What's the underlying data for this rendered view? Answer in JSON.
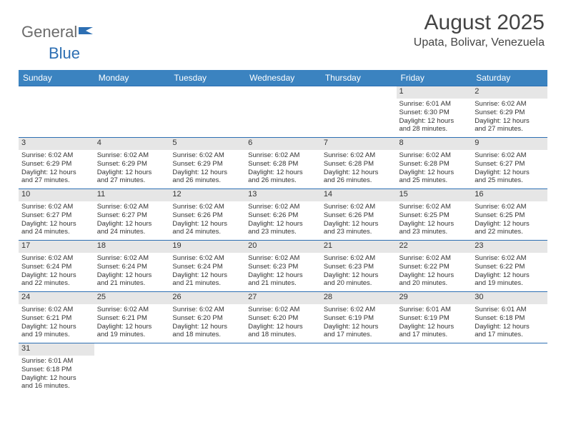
{
  "brand": {
    "general": "General",
    "blue": "Blue"
  },
  "title": "August 2025",
  "location": "Upata, Bolivar, Venezuela",
  "colors": {
    "header_bg": "#3b83c0",
    "header_text": "#ffffff",
    "grid_line": "#2d6fb3",
    "daybar_bg": "#e6e6e6",
    "text": "#333333",
    "logo_general": "#6b6b6b",
    "logo_blue": "#2d6fb3"
  },
  "weekdays": [
    "Sunday",
    "Monday",
    "Tuesday",
    "Wednesday",
    "Thursday",
    "Friday",
    "Saturday"
  ],
  "weeks": [
    [
      null,
      null,
      null,
      null,
      null,
      {
        "n": "1",
        "sr": "Sunrise: 6:01 AM",
        "ss": "Sunset: 6:30 PM",
        "d1": "Daylight: 12 hours",
        "d2": "and 28 minutes."
      },
      {
        "n": "2",
        "sr": "Sunrise: 6:02 AM",
        "ss": "Sunset: 6:29 PM",
        "d1": "Daylight: 12 hours",
        "d2": "and 27 minutes."
      }
    ],
    [
      {
        "n": "3",
        "sr": "Sunrise: 6:02 AM",
        "ss": "Sunset: 6:29 PM",
        "d1": "Daylight: 12 hours",
        "d2": "and 27 minutes."
      },
      {
        "n": "4",
        "sr": "Sunrise: 6:02 AM",
        "ss": "Sunset: 6:29 PM",
        "d1": "Daylight: 12 hours",
        "d2": "and 27 minutes."
      },
      {
        "n": "5",
        "sr": "Sunrise: 6:02 AM",
        "ss": "Sunset: 6:29 PM",
        "d1": "Daylight: 12 hours",
        "d2": "and 26 minutes."
      },
      {
        "n": "6",
        "sr": "Sunrise: 6:02 AM",
        "ss": "Sunset: 6:28 PM",
        "d1": "Daylight: 12 hours",
        "d2": "and 26 minutes."
      },
      {
        "n": "7",
        "sr": "Sunrise: 6:02 AM",
        "ss": "Sunset: 6:28 PM",
        "d1": "Daylight: 12 hours",
        "d2": "and 26 minutes."
      },
      {
        "n": "8",
        "sr": "Sunrise: 6:02 AM",
        "ss": "Sunset: 6:28 PM",
        "d1": "Daylight: 12 hours",
        "d2": "and 25 minutes."
      },
      {
        "n": "9",
        "sr": "Sunrise: 6:02 AM",
        "ss": "Sunset: 6:27 PM",
        "d1": "Daylight: 12 hours",
        "d2": "and 25 minutes."
      }
    ],
    [
      {
        "n": "10",
        "sr": "Sunrise: 6:02 AM",
        "ss": "Sunset: 6:27 PM",
        "d1": "Daylight: 12 hours",
        "d2": "and 24 minutes."
      },
      {
        "n": "11",
        "sr": "Sunrise: 6:02 AM",
        "ss": "Sunset: 6:27 PM",
        "d1": "Daylight: 12 hours",
        "d2": "and 24 minutes."
      },
      {
        "n": "12",
        "sr": "Sunrise: 6:02 AM",
        "ss": "Sunset: 6:26 PM",
        "d1": "Daylight: 12 hours",
        "d2": "and 24 minutes."
      },
      {
        "n": "13",
        "sr": "Sunrise: 6:02 AM",
        "ss": "Sunset: 6:26 PM",
        "d1": "Daylight: 12 hours",
        "d2": "and 23 minutes."
      },
      {
        "n": "14",
        "sr": "Sunrise: 6:02 AM",
        "ss": "Sunset: 6:26 PM",
        "d1": "Daylight: 12 hours",
        "d2": "and 23 minutes."
      },
      {
        "n": "15",
        "sr": "Sunrise: 6:02 AM",
        "ss": "Sunset: 6:25 PM",
        "d1": "Daylight: 12 hours",
        "d2": "and 23 minutes."
      },
      {
        "n": "16",
        "sr": "Sunrise: 6:02 AM",
        "ss": "Sunset: 6:25 PM",
        "d1": "Daylight: 12 hours",
        "d2": "and 22 minutes."
      }
    ],
    [
      {
        "n": "17",
        "sr": "Sunrise: 6:02 AM",
        "ss": "Sunset: 6:24 PM",
        "d1": "Daylight: 12 hours",
        "d2": "and 22 minutes."
      },
      {
        "n": "18",
        "sr": "Sunrise: 6:02 AM",
        "ss": "Sunset: 6:24 PM",
        "d1": "Daylight: 12 hours",
        "d2": "and 21 minutes."
      },
      {
        "n": "19",
        "sr": "Sunrise: 6:02 AM",
        "ss": "Sunset: 6:24 PM",
        "d1": "Daylight: 12 hours",
        "d2": "and 21 minutes."
      },
      {
        "n": "20",
        "sr": "Sunrise: 6:02 AM",
        "ss": "Sunset: 6:23 PM",
        "d1": "Daylight: 12 hours",
        "d2": "and 21 minutes."
      },
      {
        "n": "21",
        "sr": "Sunrise: 6:02 AM",
        "ss": "Sunset: 6:23 PM",
        "d1": "Daylight: 12 hours",
        "d2": "and 20 minutes."
      },
      {
        "n": "22",
        "sr": "Sunrise: 6:02 AM",
        "ss": "Sunset: 6:22 PM",
        "d1": "Daylight: 12 hours",
        "d2": "and 20 minutes."
      },
      {
        "n": "23",
        "sr": "Sunrise: 6:02 AM",
        "ss": "Sunset: 6:22 PM",
        "d1": "Daylight: 12 hours",
        "d2": "and 19 minutes."
      }
    ],
    [
      {
        "n": "24",
        "sr": "Sunrise: 6:02 AM",
        "ss": "Sunset: 6:21 PM",
        "d1": "Daylight: 12 hours",
        "d2": "and 19 minutes."
      },
      {
        "n": "25",
        "sr": "Sunrise: 6:02 AM",
        "ss": "Sunset: 6:21 PM",
        "d1": "Daylight: 12 hours",
        "d2": "and 19 minutes."
      },
      {
        "n": "26",
        "sr": "Sunrise: 6:02 AM",
        "ss": "Sunset: 6:20 PM",
        "d1": "Daylight: 12 hours",
        "d2": "and 18 minutes."
      },
      {
        "n": "27",
        "sr": "Sunrise: 6:02 AM",
        "ss": "Sunset: 6:20 PM",
        "d1": "Daylight: 12 hours",
        "d2": "and 18 minutes."
      },
      {
        "n": "28",
        "sr": "Sunrise: 6:02 AM",
        "ss": "Sunset: 6:19 PM",
        "d1": "Daylight: 12 hours",
        "d2": "and 17 minutes."
      },
      {
        "n": "29",
        "sr": "Sunrise: 6:01 AM",
        "ss": "Sunset: 6:19 PM",
        "d1": "Daylight: 12 hours",
        "d2": "and 17 minutes."
      },
      {
        "n": "30",
        "sr": "Sunrise: 6:01 AM",
        "ss": "Sunset: 6:18 PM",
        "d1": "Daylight: 12 hours",
        "d2": "and 17 minutes."
      }
    ],
    [
      {
        "n": "31",
        "sr": "Sunrise: 6:01 AM",
        "ss": "Sunset: 6:18 PM",
        "d1": "Daylight: 12 hours",
        "d2": "and 16 minutes."
      },
      null,
      null,
      null,
      null,
      null,
      null
    ]
  ]
}
